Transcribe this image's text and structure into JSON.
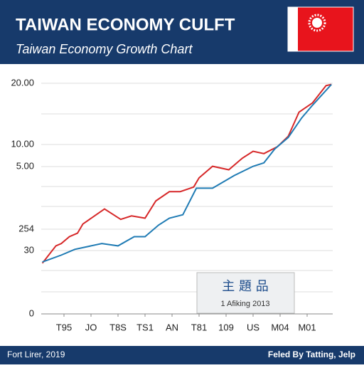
{
  "chart_data": {
    "type": "line",
    "title": "TAIWAN ECONOMY CULFT",
    "subtitle": "Taiwan Economy Growth Chart",
    "y_axis_labels": [
      "20.00",
      "10.00",
      "5.00",
      "254",
      "30",
      "0"
    ],
    "xlim": [
      0,
      11
    ],
    "ylim": [
      0,
      20
    ],
    "xticks": [
      {
        "value": 1,
        "label": "T95"
      },
      {
        "value": 2,
        "label": "JO"
      },
      {
        "value": 3,
        "label": "T8S"
      },
      {
        "value": 4,
        "label": "TS1"
      },
      {
        "value": 5,
        "label": "AN"
      },
      {
        "value": 6,
        "label": "T81"
      },
      {
        "value": 7,
        "label": "109"
      },
      {
        "value": 8,
        "label": "US"
      },
      {
        "value": 9,
        "label": "M04"
      },
      {
        "value": 10,
        "label": "M01"
      }
    ],
    "grid": true,
    "series": [
      {
        "color": "#d62728",
        "x": [
          0.2,
          0.7,
          0.9,
          1.2,
          1.5,
          1.7,
          2.5,
          3.1,
          3.5,
          4.0,
          4.4,
          4.9,
          5.3,
          5.8,
          6.0,
          6.5,
          7.1,
          7.6,
          8.0,
          8.4,
          8.9,
          9.3,
          9.7,
          10.2,
          10.7,
          10.9
        ],
        "values": [
          4.4,
          5.9,
          6.1,
          6.7,
          7.0,
          7.8,
          9.1,
          8.2,
          8.5,
          8.3,
          9.8,
          10.6,
          10.6,
          11.0,
          11.8,
          12.8,
          12.5,
          13.5,
          14.1,
          13.9,
          14.5,
          15.4,
          17.5,
          18.3,
          19.8,
          19.9
        ]
      },
      {
        "color": "#1f7bb4",
        "x": [
          0.2,
          0.9,
          1.4,
          2.4,
          3.0,
          3.6,
          4.0,
          4.5,
          4.9,
          5.4,
          5.9,
          6.5,
          7.3,
          8.0,
          8.4,
          8.8,
          9.3,
          9.8,
          10.2,
          10.9
        ],
        "values": [
          4.5,
          5.1,
          5.6,
          6.1,
          5.9,
          6.7,
          6.7,
          7.7,
          8.3,
          8.6,
          10.9,
          10.9,
          12.0,
          12.8,
          13.1,
          14.3,
          15.3,
          17.0,
          18.1,
          19.9
        ]
      }
    ],
    "annotation": {
      "title": "主 題 品",
      "text": "1 Afiking 2013"
    },
    "footer": {
      "left": "Fort Lirer, 2019",
      "right": "Feled By Tatting, Jelp"
    }
  }
}
